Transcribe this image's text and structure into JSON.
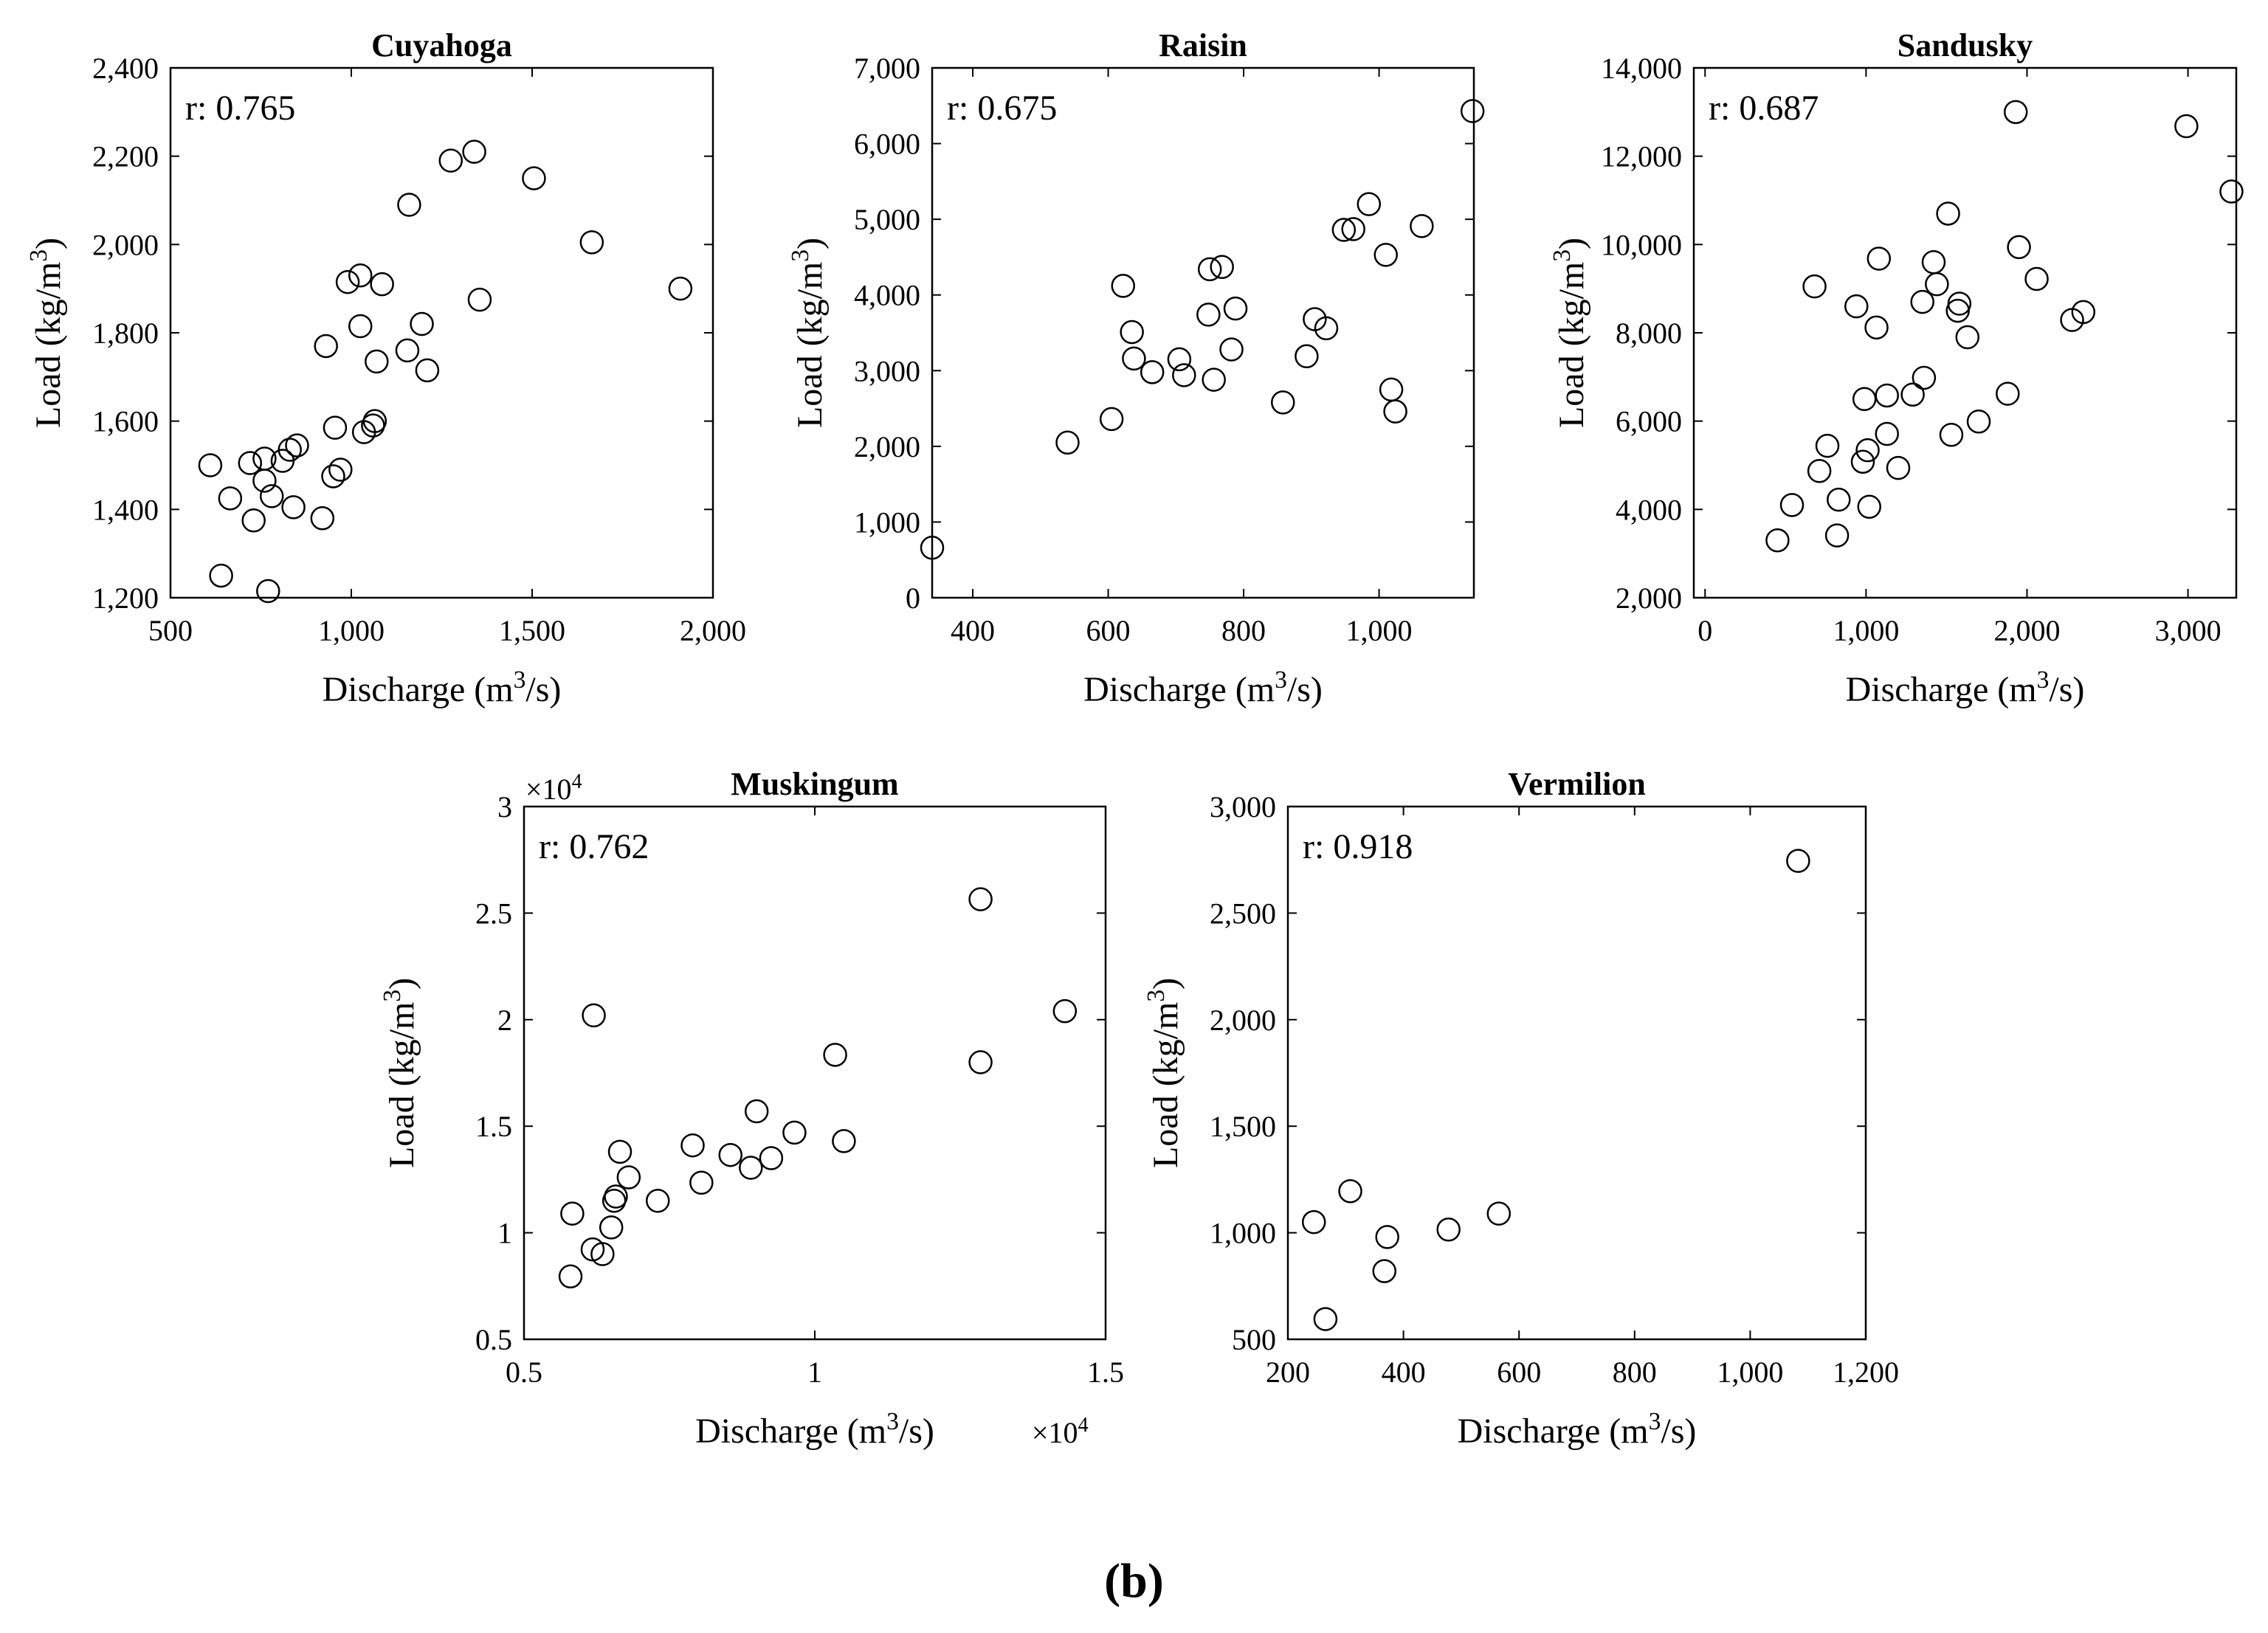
{
  "figure_label": "(b)",
  "colors": {
    "marker": "#000000",
    "axis": "#000000",
    "background": "#ffffff"
  },
  "chart_data": [
    {
      "type": "scatter",
      "title": "Cuyahoga",
      "annotation": "r: 0.765",
      "xlabel": "Discharge (m³/s)",
      "ylabel": "Load (kg/m³)",
      "xlim": [
        500,
        2000
      ],
      "ylim": [
        1200,
        2400
      ],
      "xticks": [
        500,
        1000,
        1500,
        2000
      ],
      "xtick_labels": [
        "500",
        "1,000",
        "1,500",
        "2,000"
      ],
      "yticks": [
        1200,
        1400,
        1600,
        1800,
        2000,
        2200,
        2400
      ],
      "ytick_labels": [
        "1,200",
        "1,400",
        "1,600",
        "1,800",
        "2,000",
        "2,200",
        "2,400"
      ],
      "x_multiplier": "",
      "y_multiplier": "",
      "points": [
        [
          610,
          1500
        ],
        [
          640,
          1250
        ],
        [
          665,
          1425
        ],
        [
          720,
          1505
        ],
        [
          730,
          1375
        ],
        [
          760,
          1515
        ],
        [
          760,
          1465
        ],
        [
          770,
          1215
        ],
        [
          780,
          1430
        ],
        [
          810,
          1510
        ],
        [
          830,
          1535
        ],
        [
          840,
          1405
        ],
        [
          850,
          1545
        ],
        [
          920,
          1380
        ],
        [
          930,
          1770
        ],
        [
          950,
          1475
        ],
        [
          955,
          1585
        ],
        [
          970,
          1490
        ],
        [
          990,
          1915
        ],
        [
          1025,
          1815
        ],
        [
          1025,
          1930
        ],
        [
          1035,
          1575
        ],
        [
          1060,
          1590
        ],
        [
          1065,
          1600
        ],
        [
          1070,
          1735
        ],
        [
          1085,
          1910
        ],
        [
          1155,
          1760
        ],
        [
          1160,
          2090
        ],
        [
          1195,
          1820
        ],
        [
          1210,
          1715
        ],
        [
          1275,
          2190
        ],
        [
          1340,
          2210
        ],
        [
          1355,
          1875
        ],
        [
          1505,
          2150
        ],
        [
          1665,
          2005
        ],
        [
          1910,
          1900
        ]
      ]
    },
    {
      "type": "scatter",
      "title": "Raisin",
      "annotation": "r: 0.675",
      "xlabel": "Discharge (m³/s)",
      "ylabel": "Load (kg/m³)",
      "xlim": [
        340,
        1140
      ],
      "ylim": [
        0,
        7000
      ],
      "xticks": [
        400,
        600,
        800,
        1000
      ],
      "xtick_labels": [
        "400",
        "600",
        "800",
        "1,000"
      ],
      "yticks": [
        0,
        1000,
        2000,
        3000,
        4000,
        5000,
        6000,
        7000
      ],
      "ytick_labels": [
        "0",
        "1,000",
        "2,000",
        "3,000",
        "4,000",
        "5,000",
        "6,000",
        "7,000"
      ],
      "x_multiplier": "",
      "y_multiplier": "",
      "points": [
        [
          340,
          660
        ],
        [
          540,
          2050
        ],
        [
          605,
          2360
        ],
        [
          622,
          4120
        ],
        [
          635,
          3510
        ],
        [
          638,
          3160
        ],
        [
          665,
          2980
        ],
        [
          705,
          3150
        ],
        [
          712,
          2940
        ],
        [
          748,
          3740
        ],
        [
          750,
          4340
        ],
        [
          756,
          2880
        ],
        [
          768,
          4370
        ],
        [
          782,
          3280
        ],
        [
          788,
          3820
        ],
        [
          858,
          2580
        ],
        [
          893,
          3190
        ],
        [
          905,
          3680
        ],
        [
          922,
          3560
        ],
        [
          948,
          4860
        ],
        [
          962,
          4870
        ],
        [
          985,
          5200
        ],
        [
          1010,
          4530
        ],
        [
          1018,
          2750
        ],
        [
          1024,
          2460
        ],
        [
          1063,
          4910
        ],
        [
          1138,
          6430
        ]
      ]
    },
    {
      "type": "scatter",
      "title": "Sandusky",
      "annotation": "r: 0.687",
      "xlabel": "Discharge (m³/s)",
      "ylabel": "Load (kg/m³)",
      "xlim": [
        -70,
        3300
      ],
      "ylim": [
        2000,
        14000
      ],
      "xticks": [
        0,
        1000,
        2000,
        3000
      ],
      "xtick_labels": [
        "0",
        "1,000",
        "2,000",
        "3,000"
      ],
      "yticks": [
        2000,
        4000,
        6000,
        8000,
        10000,
        12000,
        14000
      ],
      "ytick_labels": [
        "2,000",
        "4,000",
        "6,000",
        "8,000",
        "10,000",
        "12,000",
        "14,000"
      ],
      "x_multiplier": "",
      "y_multiplier": "",
      "points": [
        [
          450,
          3300
        ],
        [
          540,
          4100
        ],
        [
          680,
          9050
        ],
        [
          710,
          4870
        ],
        [
          760,
          5440
        ],
        [
          820,
          3410
        ],
        [
          830,
          4220
        ],
        [
          940,
          8600
        ],
        [
          980,
          5080
        ],
        [
          990,
          6500
        ],
        [
          1010,
          5340
        ],
        [
          1020,
          4060
        ],
        [
          1065,
          8120
        ],
        [
          1080,
          9680
        ],
        [
          1130,
          6580
        ],
        [
          1130,
          5710
        ],
        [
          1200,
          4940
        ],
        [
          1290,
          6600
        ],
        [
          1350,
          8700
        ],
        [
          1360,
          6980
        ],
        [
          1420,
          9600
        ],
        [
          1440,
          9100
        ],
        [
          1510,
          10700
        ],
        [
          1530,
          5690
        ],
        [
          1570,
          8500
        ],
        [
          1580,
          8660
        ],
        [
          1630,
          7900
        ],
        [
          1700,
          5990
        ],
        [
          1880,
          6620
        ],
        [
          1930,
          13000
        ],
        [
          1950,
          9940
        ],
        [
          2060,
          9220
        ],
        [
          2280,
          8290
        ],
        [
          2350,
          8470
        ],
        [
          2990,
          12680
        ],
        [
          3270,
          11200
        ]
      ]
    },
    {
      "type": "scatter",
      "title": "Muskingum",
      "annotation": "r: 0.762",
      "xlabel": "Discharge (m³/s)",
      "ylabel": "Load (kg/m³)",
      "xlim": [
        0.5,
        1.5
      ],
      "ylim": [
        0.5,
        3
      ],
      "xticks": [
        0.5,
        1,
        1.5
      ],
      "xtick_labels": [
        "0.5",
        "1",
        "1.5"
      ],
      "yticks": [
        0.5,
        1,
        1.5,
        2,
        2.5,
        3
      ],
      "ytick_labels": [
        "0.5",
        "1",
        "1.5",
        "2",
        "2.5",
        "3"
      ],
      "x_multiplier": "×10⁴",
      "y_multiplier": "×10⁴",
      "points": [
        [
          0.58,
          0.795
        ],
        [
          0.583,
          1.09
        ],
        [
          0.618,
          0.922
        ],
        [
          0.62,
          2.02
        ],
        [
          0.635,
          0.9
        ],
        [
          0.65,
          1.025
        ],
        [
          0.655,
          1.15
        ],
        [
          0.658,
          1.17
        ],
        [
          0.665,
          1.38
        ],
        [
          0.68,
          1.26
        ],
        [
          0.73,
          1.15
        ],
        [
          0.79,
          1.41
        ],
        [
          0.805,
          1.235
        ],
        [
          0.855,
          1.365
        ],
        [
          0.89,
          1.305
        ],
        [
          0.9,
          1.57
        ],
        [
          0.925,
          1.35
        ],
        [
          0.965,
          1.47
        ],
        [
          1.035,
          1.835
        ],
        [
          1.05,
          1.43
        ],
        [
          1.285,
          2.565
        ],
        [
          1.285,
          1.8
        ],
        [
          1.43,
          2.04
        ]
      ]
    },
    {
      "type": "scatter",
      "title": "Vermilion",
      "annotation": "r: 0.918",
      "xlabel": "Discharge (m³/s)",
      "ylabel": "Load (kg/m³)",
      "xlim": [
        200,
        1200
      ],
      "ylim": [
        500,
        3000
      ],
      "xticks": [
        200,
        400,
        600,
        800,
        1000,
        1200
      ],
      "xtick_labels": [
        "200",
        "400",
        "600",
        "800",
        "1,000",
        "1,200"
      ],
      "yticks": [
        500,
        1000,
        1500,
        2000,
        2500,
        3000
      ],
      "ytick_labels": [
        "500",
        "1,000",
        "1,500",
        "2,000",
        "2,500",
        "3,000"
      ],
      "x_multiplier": "",
      "y_multiplier": "",
      "points": [
        [
          245,
          1050
        ],
        [
          265,
          595
        ],
        [
          308,
          1195
        ],
        [
          367,
          820
        ],
        [
          372,
          980
        ],
        [
          478,
          1015
        ],
        [
          565,
          1090
        ],
        [
          1083,
          2745
        ]
      ]
    }
  ]
}
